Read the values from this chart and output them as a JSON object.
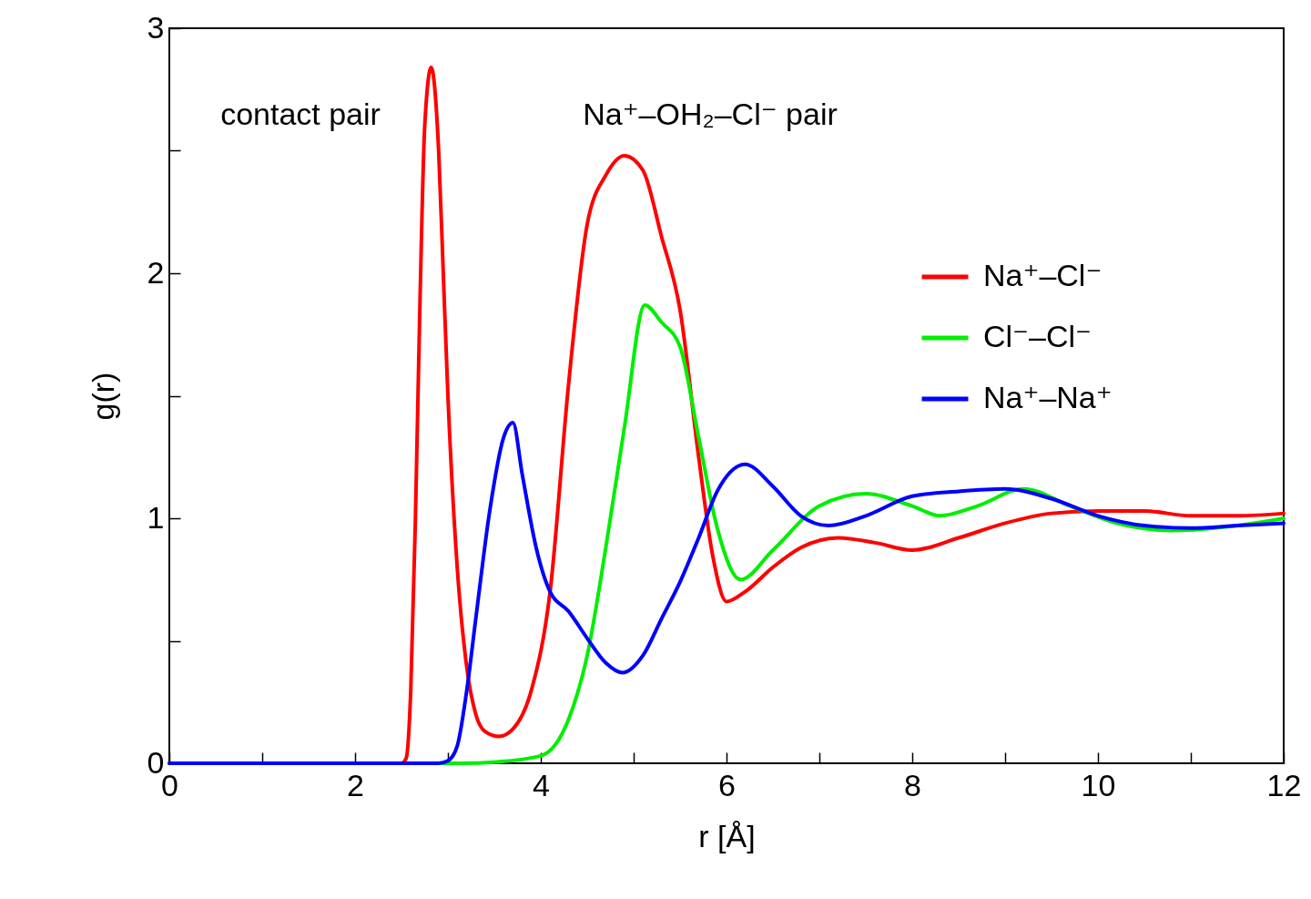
{
  "chart_data": {
    "type": "line",
    "xlabel": "r [Å]",
    "ylabel": "g(r)",
    "annotations": [
      "contact pair",
      "Na⁺–OH₂–Cl⁻ pair"
    ],
    "xlim": [
      0,
      12
    ],
    "ylim": [
      0,
      3
    ],
    "xticks": [
      0,
      {
        "value": 1,
        "label": null
      },
      2,
      {
        "value": 3,
        "label": null
      },
      4,
      {
        "value": 5,
        "label": null
      },
      6,
      {
        "value": 7,
        "label": null
      },
      8,
      {
        "value": 9,
        "label": null
      },
      10,
      {
        "value": 11,
        "label": null
      },
      12
    ],
    "yticks": [
      0,
      {
        "value": 0.5,
        "label": null
      },
      1,
      {
        "value": 1.5,
        "label": null
      },
      2,
      {
        "value": 2.5,
        "label": null
      },
      3
    ],
    "grid": false,
    "legend": "top right",
    "marker": "none",
    "line_style": "solid",
    "series": [
      {
        "name": "Na⁺–Cl⁻",
        "color": "#ff0000",
        "x": [
          0,
          2.5,
          2.55,
          2.6,
          2.65,
          2.7,
          2.75,
          2.82,
          2.9,
          2.95,
          3.0,
          3.1,
          3.2,
          3.3,
          3.4,
          3.55,
          3.7,
          3.9,
          4.1,
          4.3,
          4.5,
          4.7,
          4.9,
          5.1,
          5.3,
          5.5,
          5.7,
          5.85,
          6.0,
          6.2,
          6.5,
          6.8,
          7.2,
          7.6,
          8.0,
          8.5,
          9.0,
          9.5,
          10.0,
          10.5,
          11,
          11.5,
          12
        ],
        "values": [
          0,
          0,
          0.02,
          0.3,
          1.0,
          1.9,
          2.6,
          2.84,
          2.5,
          2.0,
          1.5,
          0.8,
          0.4,
          0.2,
          0.13,
          0.11,
          0.14,
          0.3,
          0.7,
          1.55,
          2.2,
          2.4,
          2.48,
          2.42,
          2.15,
          1.85,
          1.25,
          0.85,
          0.66,
          0.7,
          0.8,
          0.88,
          0.92,
          0.9,
          0.87,
          0.92,
          0.98,
          1.02,
          1.03,
          1.03,
          1.01,
          1.01,
          1.02
        ]
      },
      {
        "name": "Cl⁻–Cl⁻",
        "color": "#00ee00",
        "x": [
          0,
          3.1,
          3.5,
          4.0,
          4.3,
          4.5,
          4.7,
          4.9,
          5.12,
          5.3,
          5.5,
          5.7,
          5.9,
          6.15,
          6.5,
          7.0,
          7.5,
          8.0,
          8.3,
          8.7,
          9.2,
          9.7,
          10.2,
          10.8,
          11.5,
          12
        ],
        "values": [
          0,
          0,
          0.005,
          0.03,
          0.18,
          0.44,
          0.88,
          1.37,
          1.87,
          1.8,
          1.7,
          1.33,
          0.96,
          0.75,
          0.87,
          1.05,
          1.1,
          1.05,
          1.01,
          1.05,
          1.12,
          1.05,
          0.98,
          0.95,
          0.97,
          1.0
        ]
      },
      {
        "name": "Na⁺–Na⁺",
        "color": "#0000ff",
        "x": [
          0,
          2.9,
          3.0,
          3.1,
          3.2,
          3.3,
          3.45,
          3.6,
          3.7,
          3.8,
          3.95,
          4.1,
          4.3,
          4.5,
          4.7,
          4.88,
          5.1,
          5.3,
          5.5,
          5.7,
          5.9,
          6.2,
          6.5,
          6.8,
          7.1,
          7.5,
          8.0,
          8.5,
          9.0,
          9.5,
          10.0,
          10.5,
          11.0,
          11.5,
          12
        ],
        "values": [
          0,
          0,
          0.01,
          0.07,
          0.29,
          0.59,
          1.03,
          1.33,
          1.39,
          1.18,
          0.88,
          0.7,
          0.62,
          0.51,
          0.41,
          0.37,
          0.44,
          0.59,
          0.74,
          0.92,
          1.11,
          1.22,
          1.13,
          1.01,
          0.97,
          1.01,
          1.09,
          1.11,
          1.12,
          1.08,
          1.01,
          0.97,
          0.96,
          0.97,
          0.98
        ]
      }
    ]
  }
}
